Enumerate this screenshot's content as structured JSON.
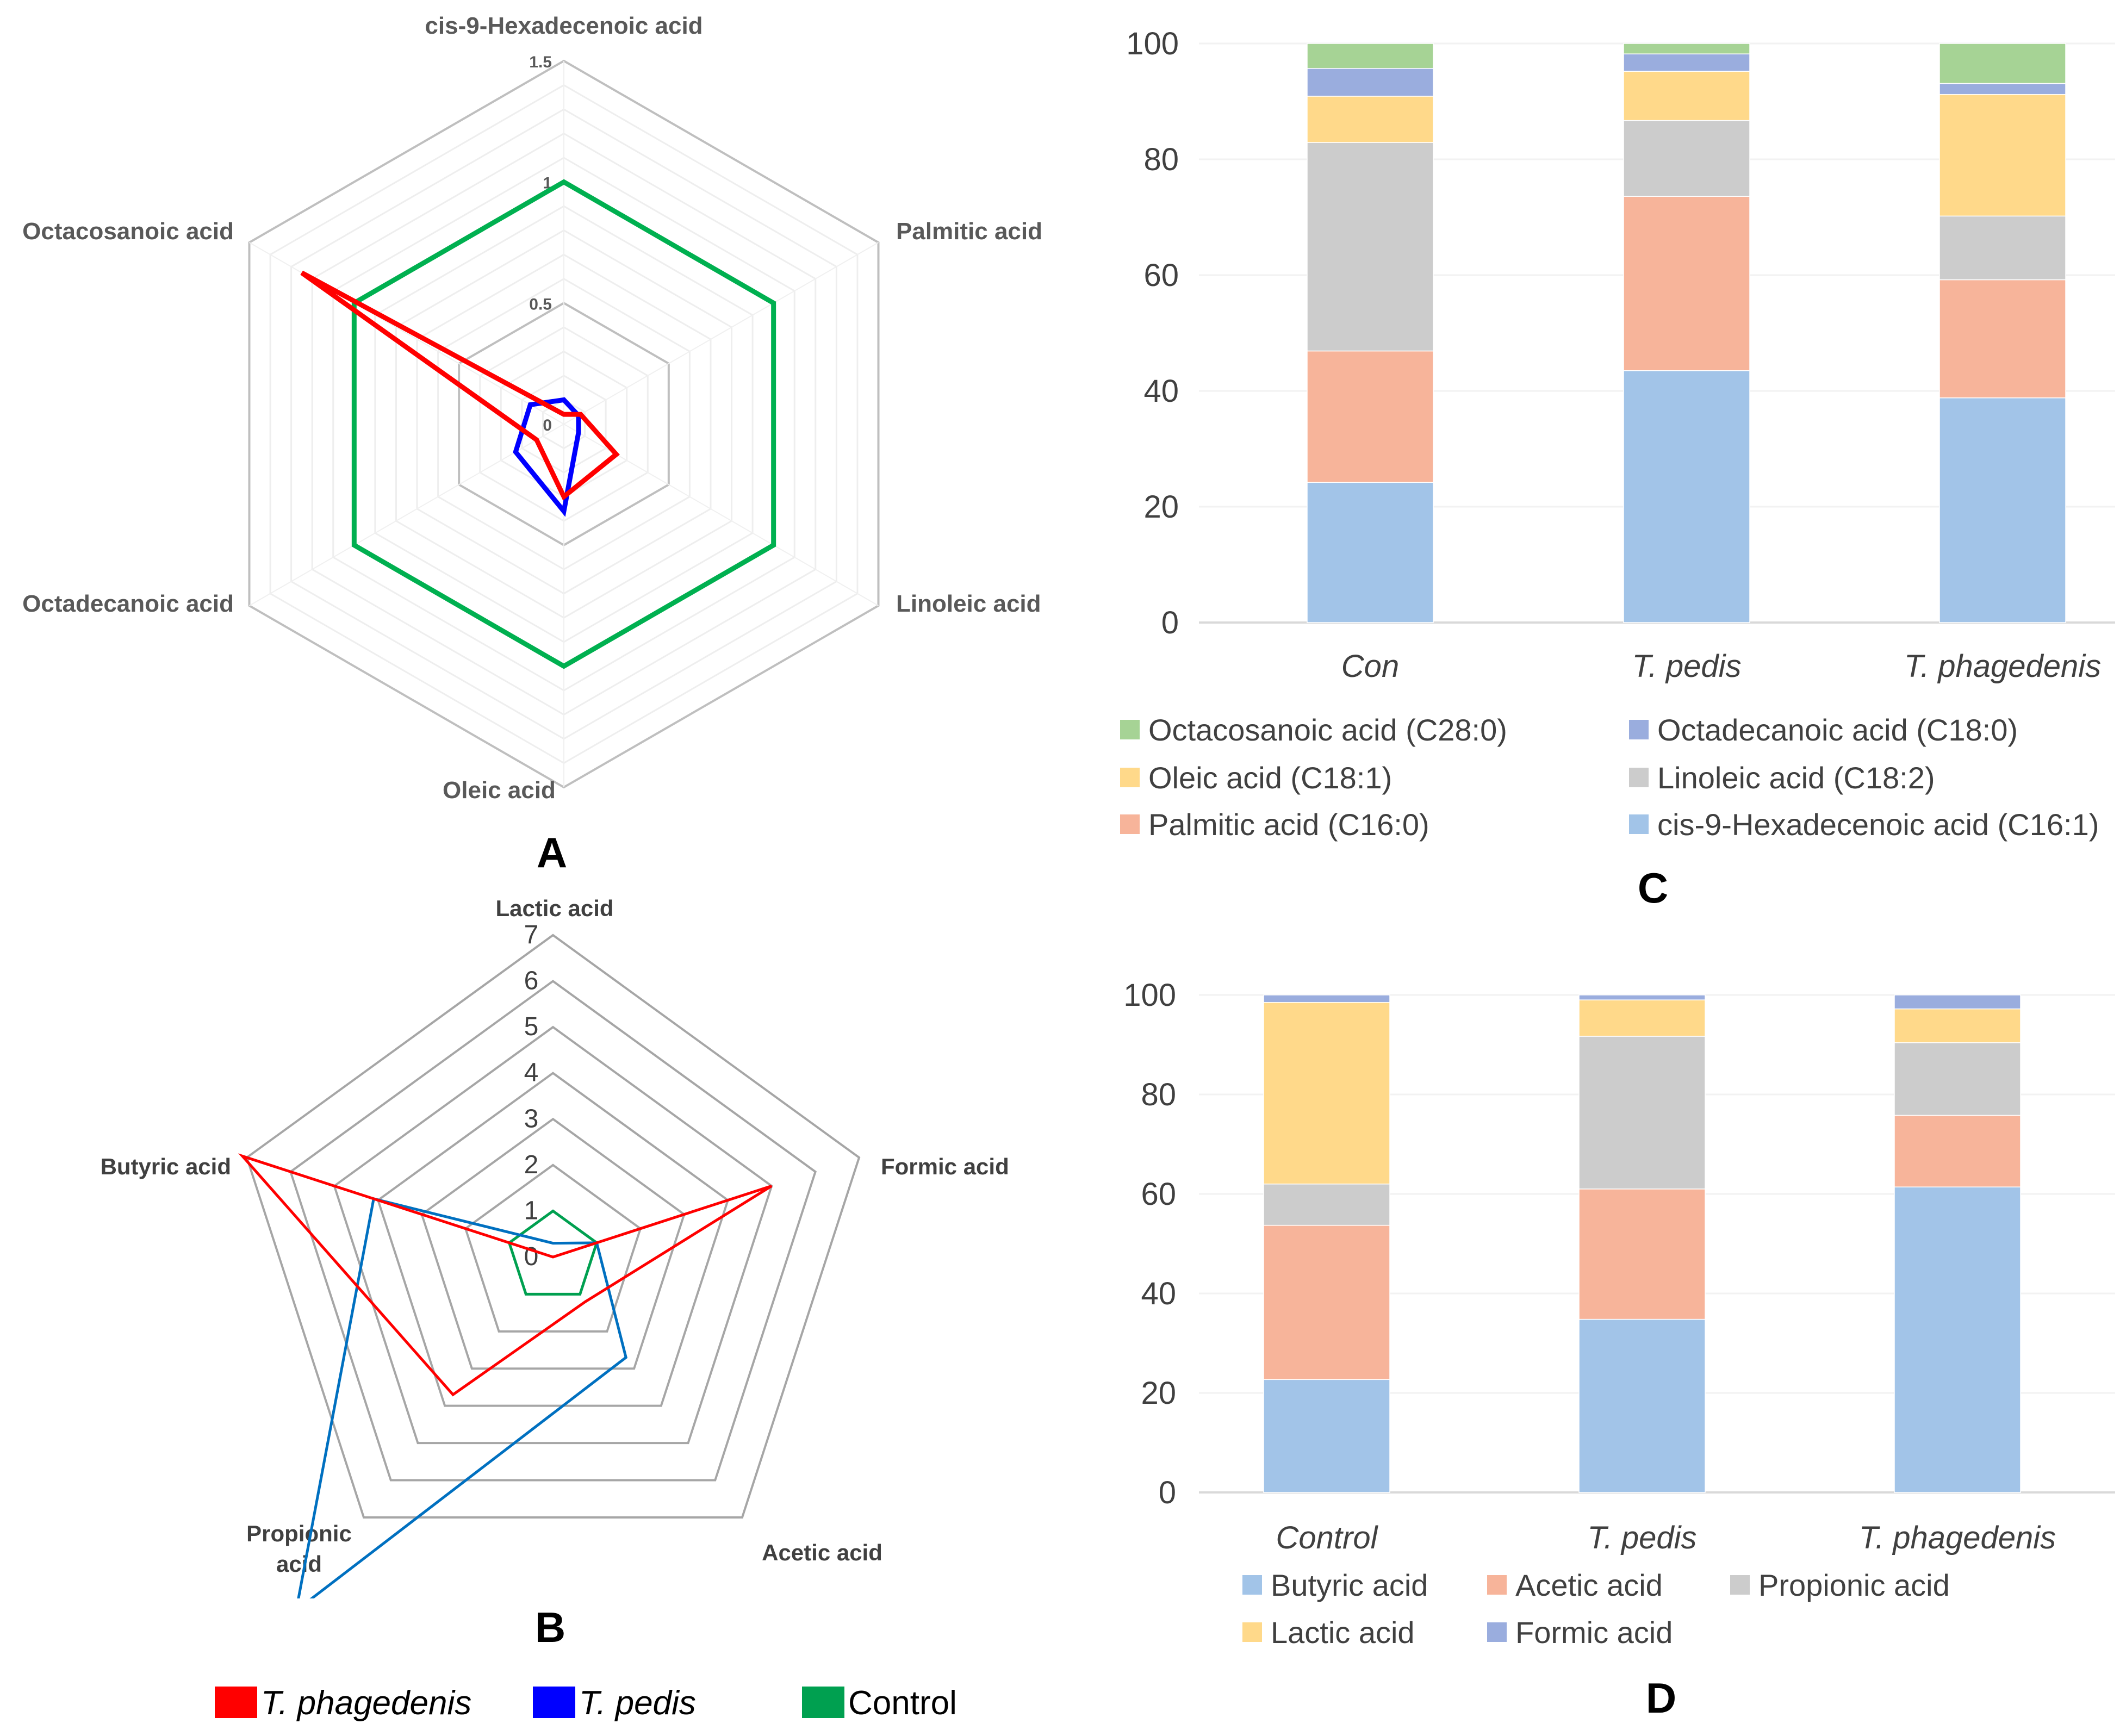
{
  "chart_data": [
    {
      "panel": "A",
      "type": "radar",
      "axes": [
        "cis-9-Hexadecenoic acid",
        "Palmitic acid",
        "Linoleic acid",
        "Oleic acid",
        "Octadecanoic acid",
        "Octacosanoic acid"
      ],
      "tick_labels": [
        "0",
        "0.5",
        "1",
        "1.5"
      ],
      "rlim": [
        0,
        1.5
      ],
      "series": [
        {
          "name": "Control",
          "color": "#00b050",
          "values": [
            1,
            1,
            1,
            1,
            1,
            1
          ]
        },
        {
          "name": "T. pedis",
          "color": "#0000ff",
          "values": [
            0.1,
            0.07,
            0.07,
            0.36,
            0.23,
            0.16
          ]
        },
        {
          "name": "T. phagedenis",
          "color": "#ff0000",
          "values": [
            0.04,
            0.08,
            0.25,
            0.3,
            0.13,
            1.25
          ]
        }
      ]
    },
    {
      "panel": "B",
      "type": "radar",
      "axes": [
        "Lactic acid",
        "Formic acid",
        "Acetic acid",
        "Propionic acid",
        "Butyric acid"
      ],
      "tick_labels": [
        "0",
        "1",
        "2",
        "3",
        "4",
        "5",
        "6",
        "7"
      ],
      "rlim": [
        0,
        7
      ],
      "series": [
        {
          "name": "Control",
          "color": "#00a050",
          "values": [
            1,
            1,
            1,
            1,
            1
          ]
        },
        {
          "name": "T. pedis",
          "color": "#0070c0",
          "values": [
            0.3,
            1,
            2.7,
            9.5,
            4.1
          ]
        },
        {
          "name": "T. phagedenis",
          "color": "#ff0000",
          "values": [
            0,
            5,
            1.2,
            3.7,
            7.1
          ]
        }
      ]
    },
    {
      "panel": "C",
      "type": "stacked-bar",
      "categories": [
        "Con",
        "T. pedis",
        "T. phagedenis"
      ],
      "ylim": [
        0,
        100
      ],
      "yticks": [
        "0",
        "20",
        "40",
        "60",
        "80",
        "100"
      ],
      "series": [
        {
          "name": "cis-9-Hexadecenoic acid (C16:1)",
          "color": "#a2c4e8",
          "values": [
            24.2,
            43.5,
            38.8
          ]
        },
        {
          "name": "Palmitic acid (C16:0)",
          "color": "#f7b49a",
          "values": [
            22.7,
            30.1,
            20.4
          ]
        },
        {
          "name": "Linoleic acid (C18:2)",
          "color": "#cccccc",
          "values": [
            36,
            13.1,
            11
          ]
        },
        {
          "name": "Oleic acid (C18:1)",
          "color": "#ffd98a",
          "values": [
            8,
            8.5,
            21
          ]
        },
        {
          "name": "Octadecanoic acid (C18:0)",
          "color": "#9aadde",
          "values": [
            4.8,
            3,
            1.9
          ]
        },
        {
          "name": "Octacosanoic acid (C28:0)",
          "color": "#a6d395",
          "values": [
            4.3,
            1.8,
            6.9
          ]
        }
      ],
      "legend_order": [
        "Octacosanoic acid (C28:0)",
        "Octadecanoic acid (C18:0)",
        "Oleic acid (C18:1)",
        "Linoleic acid (C18:2)",
        "Palmitic acid (C16:0)",
        "cis-9-Hexadecenoic acid (C16:1)"
      ]
    },
    {
      "panel": "D",
      "type": "stacked-bar",
      "categories": [
        "Control",
        "T. pedis",
        "T. phagedenis"
      ],
      "ylim": [
        0,
        100
      ],
      "yticks": [
        "0",
        "20",
        "40",
        "60",
        "80",
        "100"
      ],
      "series": [
        {
          "name": "Butyric acid",
          "color": "#a2c4e8",
          "values": [
            22.7,
            34.8,
            61.4
          ]
        },
        {
          "name": "Acetic acid",
          "color": "#f7b49a",
          "values": [
            31,
            26.2,
            14.4
          ]
        },
        {
          "name": "Propionic acid",
          "color": "#cccccc",
          "values": [
            8.3,
            30.7,
            14.6
          ]
        },
        {
          "name": "Lactic acid",
          "color": "#ffd98a",
          "values": [
            36.5,
            7.3,
            6.8
          ]
        },
        {
          "name": "Formic acid",
          "color": "#9aadde",
          "values": [
            1.5,
            1,
            2.8
          ]
        }
      ],
      "legend_order": [
        "Butyric acid",
        "Acetic acid",
        "Propionic acid",
        "Lactic acid",
        "Formic acid"
      ]
    }
  ],
  "panel_labels": [
    "A",
    "B",
    "C",
    "D"
  ],
  "legend": [
    {
      "name": "T. phagedenis",
      "color": "#ff0000"
    },
    {
      "name": "T. pedis",
      "color": "#0000ff"
    },
    {
      "name": "Control",
      "color": "#00a050"
    }
  ]
}
